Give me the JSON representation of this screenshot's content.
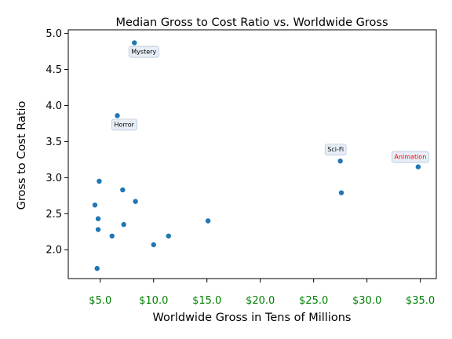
{
  "chart_data": {
    "type": "scatter",
    "title": "Median Gross to Cost Ratio vs. Worldwide Gross",
    "xlabel": "Worldwide Gross in Tens of Millions",
    "ylabel": "Gross to Cost Ratio",
    "xlim": [
      2.0,
      36.5
    ],
    "ylim": [
      1.6,
      5.05
    ],
    "x_ticks": [
      5,
      10,
      15,
      20,
      25,
      30,
      35
    ],
    "x_tick_labels": [
      "$5.0",
      "$10.0",
      "$15.0",
      "$20.0",
      "$25.0",
      "$30.0",
      "$35.0"
    ],
    "y_ticks": [
      2.0,
      2.5,
      3.0,
      3.5,
      4.0,
      4.5,
      5.0
    ],
    "y_tick_labels": [
      "2.0",
      "2.5",
      "3.0",
      "3.5",
      "4.0",
      "4.5",
      "5.0"
    ],
    "grid": false,
    "colors": {
      "point": "#1f77b4",
      "x_tick_label": "#008000",
      "highlight_label": "#ff0000"
    },
    "points": [
      {
        "x": 8.2,
        "y": 4.87
      },
      {
        "x": 6.6,
        "y": 3.86
      },
      {
        "x": 27.5,
        "y": 3.23
      },
      {
        "x": 34.8,
        "y": 3.15
      },
      {
        "x": 4.9,
        "y": 2.95
      },
      {
        "x": 7.1,
        "y": 2.83
      },
      {
        "x": 27.6,
        "y": 2.79
      },
      {
        "x": 8.3,
        "y": 2.67
      },
      {
        "x": 4.5,
        "y": 2.62
      },
      {
        "x": 4.8,
        "y": 2.43
      },
      {
        "x": 15.1,
        "y": 2.4
      },
      {
        "x": 7.2,
        "y": 2.35
      },
      {
        "x": 4.8,
        "y": 2.28
      },
      {
        "x": 6.1,
        "y": 2.19
      },
      {
        "x": 11.4,
        "y": 2.19
      },
      {
        "x": 10.0,
        "y": 2.07
      },
      {
        "x": 4.7,
        "y": 1.74
      }
    ],
    "annotations": [
      {
        "text": "Mystery",
        "x": 8.2,
        "y": 4.87,
        "highlight": false,
        "placement": "below"
      },
      {
        "text": "Horror",
        "x": 6.6,
        "y": 3.86,
        "highlight": false,
        "placement": "below"
      },
      {
        "text": "Sci-Fi",
        "x": 27.5,
        "y": 3.23,
        "highlight": false,
        "placement": "above"
      },
      {
        "text": "Animation",
        "x": 34.8,
        "y": 3.15,
        "highlight": true,
        "placement": "above"
      }
    ]
  }
}
